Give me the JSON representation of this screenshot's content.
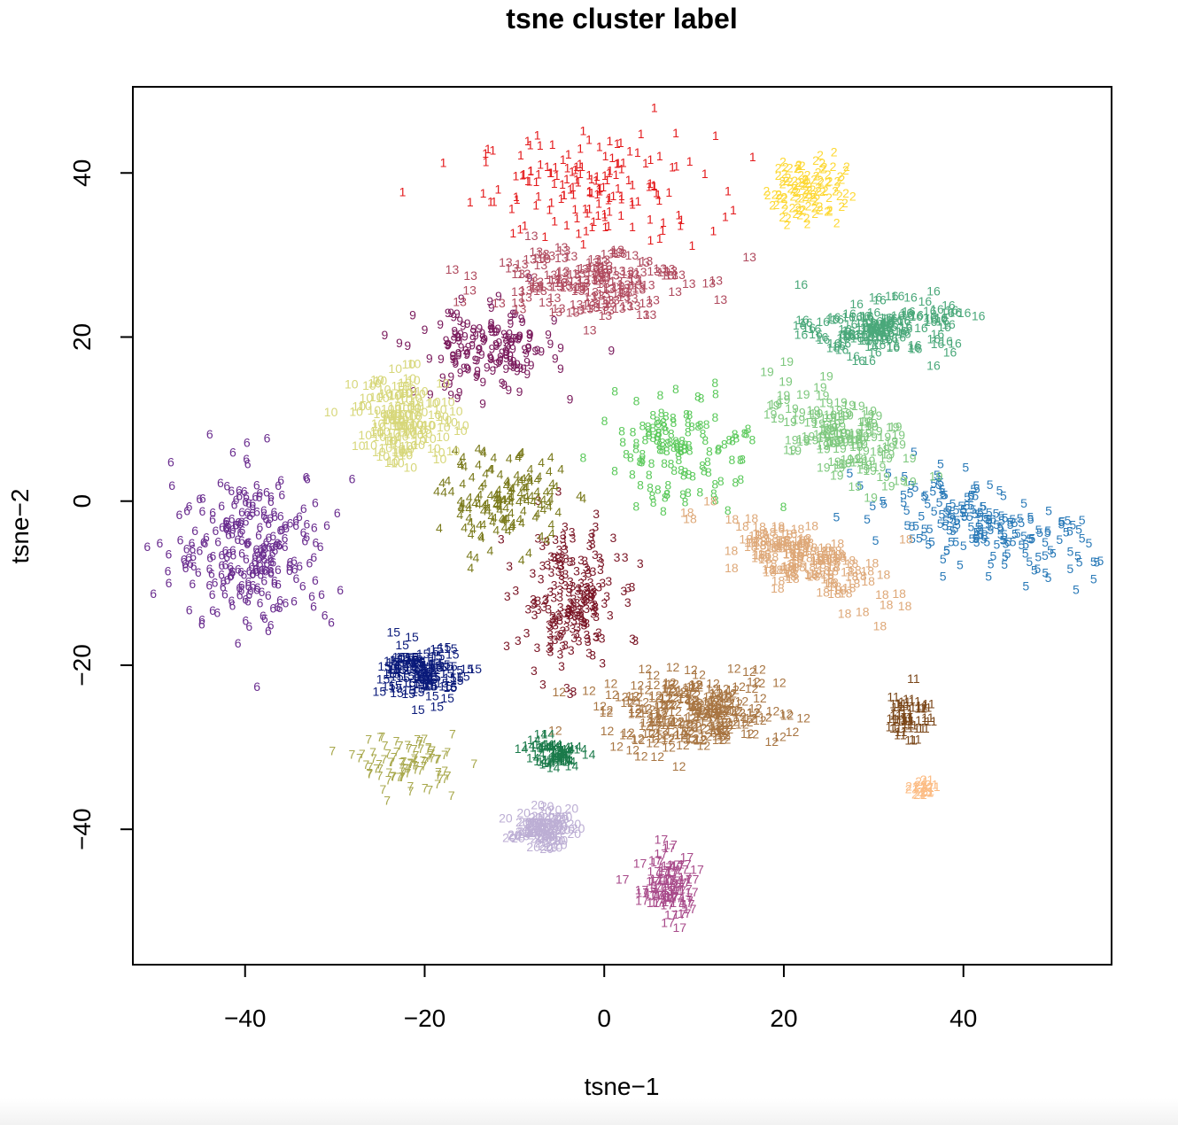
{
  "chart_data": {
    "type": "scatter",
    "title": "tsne cluster label",
    "xlabel": "tsne−1",
    "ylabel": "tsne−2",
    "xlim": [
      -52.5,
      56.5
    ],
    "ylim": [
      -56.5,
      50.5
    ],
    "xticks": [
      -40,
      -20,
      0,
      20,
      40
    ],
    "yticks": [
      -40,
      -20,
      0,
      20,
      40
    ],
    "tick_labels_x": [
      "−40",
      "−20",
      "0",
      "20",
      "40"
    ],
    "tick_labels_y": [
      "−40",
      "−20",
      "0",
      "20",
      "40"
    ],
    "grid": false,
    "legend": "none",
    "marker": "cluster id number as text",
    "clusters": [
      {
        "label": "1",
        "color": "#e41a1c",
        "center": [
          -1,
          38
        ],
        "spread": [
          12,
          6
        ],
        "count": 160
      },
      {
        "label": "2",
        "color": "#fdd835",
        "center": [
          22.5,
          38
        ],
        "spread": [
          4,
          4
        ],
        "count": 110
      },
      {
        "label": "3",
        "color": "#7b1626",
        "center": [
          -4,
          -12
        ],
        "spread": [
          5,
          8
        ],
        "count": 200
      },
      {
        "label": "4",
        "color": "#7a7a1c",
        "center": [
          -11,
          0
        ],
        "spread": [
          6,
          5
        ],
        "count": 150
      },
      {
        "label": "5",
        "color": "#2a7ab8",
        "center": [
          42,
          -3
        ],
        "spread": [
          12,
          4
        ],
        "count": 200,
        "tilt": -0.3
      },
      {
        "label": "6",
        "color": "#6a2d8f",
        "center": [
          -39,
          -6
        ],
        "spread": [
          8,
          9
        ],
        "count": 260
      },
      {
        "label": "7",
        "color": "#a8a84c",
        "center": [
          -22,
          -32
        ],
        "spread": [
          5,
          3
        ],
        "count": 90
      },
      {
        "label": "8",
        "color": "#5bc95b",
        "center": [
          8,
          6
        ],
        "spread": [
          7,
          6
        ],
        "count": 130,
        "tilt": -0.6
      },
      {
        "label": "9",
        "color": "#7a1a5c",
        "center": [
          -13,
          18
        ],
        "spread": [
          7,
          5
        ],
        "count": 160
      },
      {
        "label": "10",
        "color": "#d7d77a",
        "center": [
          -22,
          10
        ],
        "spread": [
          5,
          5
        ],
        "count": 130
      },
      {
        "label": "11",
        "color": "#7a4618",
        "center": [
          34,
          -26
        ],
        "spread": [
          2,
          3
        ],
        "count": 40
      },
      {
        "label": "12",
        "color": "#a87542",
        "center": [
          10,
          -26
        ],
        "spread": [
          9,
          4
        ],
        "count": 220
      },
      {
        "label": "13",
        "color": "#b04a5e",
        "center": [
          -2,
          27
        ],
        "spread": [
          10,
          4
        ],
        "count": 150
      },
      {
        "label": "14",
        "color": "#1a7a4a",
        "center": [
          -6,
          -31
        ],
        "spread": [
          3,
          2
        ],
        "count": 50
      },
      {
        "label": "15",
        "color": "#0a1a7a",
        "center": [
          -20,
          -21
        ],
        "spread": [
          4,
          3
        ],
        "count": 110
      },
      {
        "label": "16",
        "color": "#4aa87a",
        "center": [
          31,
          21
        ],
        "spread": [
          7,
          3
        ],
        "count": 140
      },
      {
        "label": "17",
        "color": "#a84a8a",
        "center": [
          7,
          -47
        ],
        "spread": [
          3,
          4
        ],
        "count": 80
      },
      {
        "label": "18",
        "color": "#dea878",
        "center": [
          22,
          -7
        ],
        "spread": [
          9,
          3
        ],
        "count": 140,
        "tilt": -0.45
      },
      {
        "label": "19",
        "color": "#7ec87e",
        "center": [
          26,
          8
        ],
        "spread": [
          8,
          4
        ],
        "count": 120,
        "tilt": -0.5
      },
      {
        "label": "20",
        "color": "#bcaed4",
        "center": [
          -7,
          -40
        ],
        "spread": [
          3,
          2
        ],
        "count": 80
      },
      {
        "label": "21",
        "color": "#fcbc84",
        "center": [
          35.5,
          -35
        ],
        "spread": [
          1,
          1
        ],
        "count": 15
      }
    ]
  }
}
